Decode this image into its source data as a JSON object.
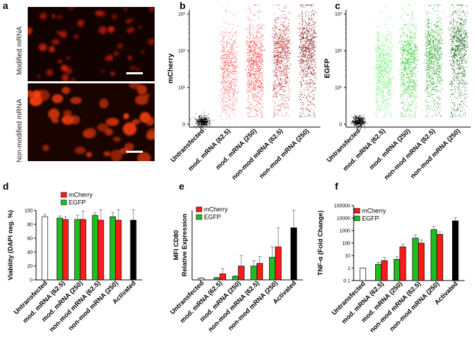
{
  "panels": {
    "a": "a",
    "b": "b",
    "c": "c",
    "d": "d",
    "e": "e",
    "f": "f"
  },
  "images": {
    "top_label": "Modified mRNA",
    "bottom_label": "Non-modified mRNA"
  },
  "colors": {
    "untransfected": "#000000",
    "mCherry": "#ff1a1a",
    "EGFP": "#22bb22",
    "activated": "#000000"
  },
  "chart_data": [
    {
      "id": "b",
      "type": "scatter",
      "ylabel": "mCherry",
      "yscale": "log",
      "yticks": [
        "0",
        "10¹",
        "10²",
        "10³"
      ],
      "categories": [
        "Untransfected",
        "mod. mRNA (62.5)",
        "mod. mRNA (250)",
        "non-mod mRNA (62.5)",
        "non-mod mRNA (250)"
      ],
      "point_colors": [
        "#000000",
        "#ff6666",
        "#ff2a2a",
        "#b01010",
        "#7a0000"
      ]
    },
    {
      "id": "c",
      "type": "scatter",
      "ylabel": "EGFP",
      "yscale": "log",
      "yticks": [
        "0",
        "10¹",
        "10²",
        "10³"
      ],
      "categories": [
        "Untransfected",
        "mod. mRNA (62.5)",
        "mod. mRNA (250)",
        "non-mod mRNA (62.5)",
        "non-mod mRNA (250)"
      ],
      "point_colors": [
        "#000000",
        "#66ee66",
        "#22cc22",
        "#119911",
        "#005500"
      ]
    },
    {
      "id": "d",
      "type": "bar",
      "ylabel": "Viability (DAPI neg. %)",
      "ylim": [
        0,
        100
      ],
      "yticks": [
        "0",
        "20",
        "40",
        "60",
        "80",
        "100"
      ],
      "categories": [
        "Untransfected",
        "mod. mRNA (62.5)",
        "mod. mRNA (250)",
        "non-mod mRNA (62.5)",
        "non-mod mRNA (250)",
        "Activated"
      ],
      "legend": [
        "mCherry",
        "EGFP"
      ],
      "bars": [
        {
          "cat": 0,
          "series": "untransfected",
          "value": 91,
          "err": 3
        },
        {
          "cat": 1,
          "series": "EGFP",
          "value": 89,
          "err": 3
        },
        {
          "cat": 1,
          "series": "mCherry",
          "value": 87,
          "err": 4
        },
        {
          "cat": 2,
          "series": "EGFP",
          "value": 87,
          "err": 6
        },
        {
          "cat": 2,
          "series": "mCherry",
          "value": 87,
          "err": 12
        },
        {
          "cat": 3,
          "series": "EGFP",
          "value": 93,
          "err": 4
        },
        {
          "cat": 3,
          "series": "mCherry",
          "value": 86,
          "err": 15
        },
        {
          "cat": 4,
          "series": "EGFP",
          "value": 91,
          "err": 6
        },
        {
          "cat": 4,
          "series": "mCherry",
          "value": 86,
          "err": 15
        },
        {
          "cat": 5,
          "series": "activated",
          "value": 86,
          "err": 15
        }
      ]
    },
    {
      "id": "e",
      "type": "bar",
      "ylabel": "MFI CD80",
      "ylabel2": "Relative Expression",
      "ylim": [
        0,
        40
      ],
      "yticks": [],
      "categories": [
        "Untransfected",
        "mod. mRNA (62.5)",
        "mod. mRNA (250)",
        "non-mod mRNA (62.5)",
        "non-mod mRNA (250)",
        "Activated"
      ],
      "legend": [
        "mCherry",
        "EGFP"
      ],
      "bars": [
        {
          "cat": 0,
          "series": "untransfected",
          "value": 1,
          "err": 0.3
        },
        {
          "cat": 1,
          "series": "EGFP",
          "value": 1.2,
          "err": 0.3
        },
        {
          "cat": 1,
          "series": "mCherry",
          "value": 3.5,
          "err": 3
        },
        {
          "cat": 2,
          "series": "EGFP",
          "value": 2,
          "err": 0.4
        },
        {
          "cat": 2,
          "series": "mCherry",
          "value": 8,
          "err": 6
        },
        {
          "cat": 3,
          "series": "EGFP",
          "value": 8,
          "err": 3
        },
        {
          "cat": 3,
          "series": "mCherry",
          "value": 9.5,
          "err": 4
        },
        {
          "cat": 4,
          "series": "EGFP",
          "value": 13,
          "err": 6
        },
        {
          "cat": 4,
          "series": "mCherry",
          "value": 19,
          "err": 11
        },
        {
          "cat": 5,
          "series": "activated",
          "value": 30,
          "err": 10
        }
      ]
    },
    {
      "id": "f",
      "type": "bar",
      "ylabel": "TNF-α (Fold Change)",
      "yscale": "log",
      "ylim": [
        0.1,
        100000
      ],
      "yticks": [
        "0.1",
        "1",
        "10",
        "100",
        "1000",
        "10000",
        "100000"
      ],
      "categories": [
        "Untransfected",
        "mod. mRNA (62.5)",
        "mod. mRNA (250)",
        "non-mod mRNA (62.5)",
        "non-mod mRNA (250)",
        "Activated"
      ],
      "legend": [
        "mCherry",
        "EGFP"
      ],
      "bars": [
        {
          "cat": 0,
          "series": "untransfected",
          "value": 1,
          "err": 0
        },
        {
          "cat": 1,
          "series": "EGFP",
          "value": 2,
          "err": 1
        },
        {
          "cat": 1,
          "series": "mCherry",
          "value": 4,
          "err": 3
        },
        {
          "cat": 2,
          "series": "EGFP",
          "value": 5,
          "err": 3
        },
        {
          "cat": 2,
          "series": "mCherry",
          "value": 50,
          "err": 30
        },
        {
          "cat": 3,
          "series": "EGFP",
          "value": 250,
          "err": 200
        },
        {
          "cat": 3,
          "series": "mCherry",
          "value": 100,
          "err": 80
        },
        {
          "cat": 4,
          "series": "EGFP",
          "value": 1200,
          "err": 800
        },
        {
          "cat": 4,
          "series": "mCherry",
          "value": 500,
          "err": 300
        },
        {
          "cat": 5,
          "series": "activated",
          "value": 6000,
          "err": 5000
        }
      ]
    }
  ]
}
